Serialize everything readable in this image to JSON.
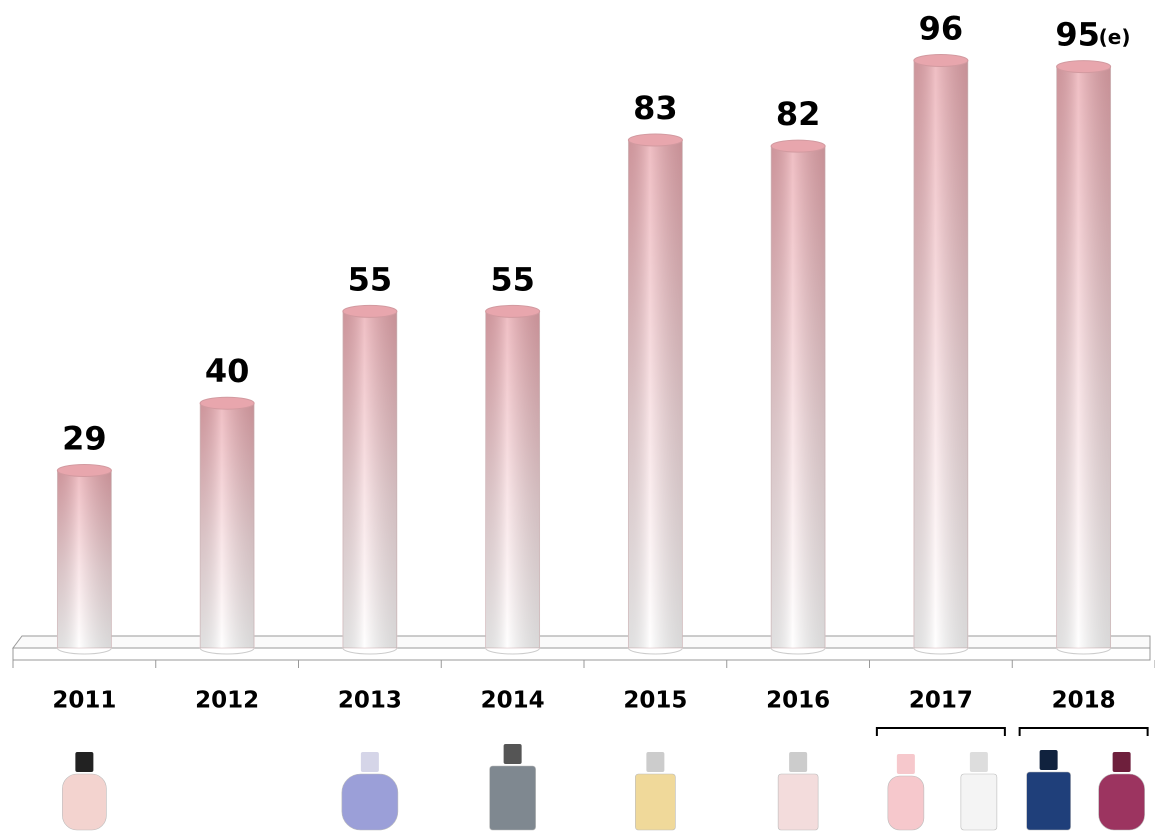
{
  "chart_data": {
    "type": "bar",
    "categories": [
      "2011",
      "2012",
      "2013",
      "2014",
      "2015",
      "2016",
      "2017",
      "2018"
    ],
    "values": [
      29,
      40,
      55,
      55,
      83,
      82,
      96,
      95
    ],
    "annotation": "(e)",
    "color": "#e8a6ad",
    "ylim": [
      0,
      100
    ]
  }
}
